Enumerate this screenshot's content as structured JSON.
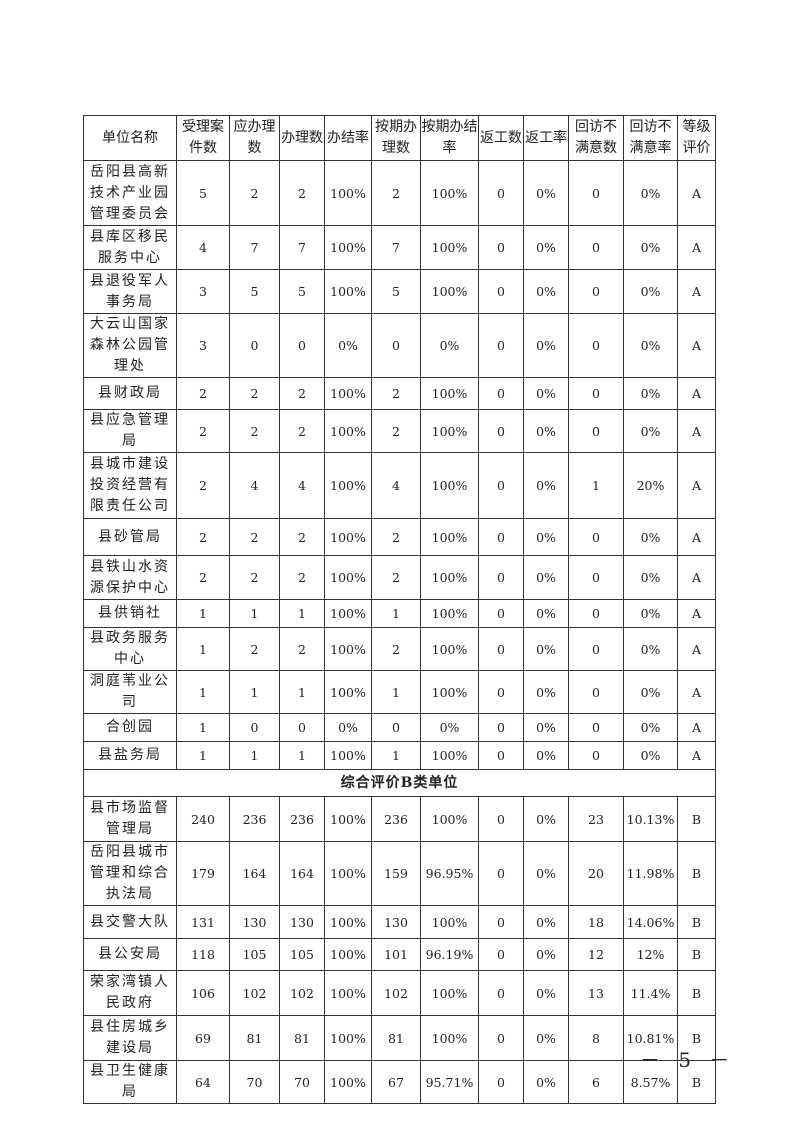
{
  "table": {
    "headers": [
      "单位名称",
      "受理案件数",
      "应办理数",
      "办理数",
      "办结率",
      "按期办理数",
      "按期办结率",
      "返工数",
      "返工率",
      "回访不满意数",
      "回访不满意率",
      "等级评价"
    ],
    "rows_a": [
      [
        "岳阳县高新技术产业园管理委员会",
        "5",
        "2",
        "2",
        "100%",
        "2",
        "100%",
        "0",
        "0%",
        "0",
        "0%",
        "A"
      ],
      [
        "县库区移民服务中心",
        "4",
        "7",
        "7",
        "100%",
        "7",
        "100%",
        "0",
        "0%",
        "0",
        "0%",
        "A"
      ],
      [
        "县退役军人事务局",
        "3",
        "5",
        "5",
        "100%",
        "5",
        "100%",
        "0",
        "0%",
        "0",
        "0%",
        "A"
      ],
      [
        "大云山国家森林公园管理处",
        "3",
        "0",
        "0",
        "0%",
        "0",
        "0%",
        "0",
        "0%",
        "0",
        "0%",
        "A"
      ],
      [
        "县财政局",
        "2",
        "2",
        "2",
        "100%",
        "2",
        "100%",
        "0",
        "0%",
        "0",
        "0%",
        "A"
      ],
      [
        "县应急管理局",
        "2",
        "2",
        "2",
        "100%",
        "2",
        "100%",
        "0",
        "0%",
        "0",
        "0%",
        "A"
      ],
      [
        "县城市建设投资经营有限责任公司",
        "2",
        "4",
        "4",
        "100%",
        "4",
        "100%",
        "0",
        "0%",
        "1",
        "20%",
        "A"
      ],
      [
        "县砂管局",
        "2",
        "2",
        "2",
        "100%",
        "2",
        "100%",
        "0",
        "0%",
        "0",
        "0%",
        "A"
      ],
      [
        "县铁山水资源保护中心",
        "2",
        "2",
        "2",
        "100%",
        "2",
        "100%",
        "0",
        "0%",
        "0",
        "0%",
        "A"
      ],
      [
        "县供销社",
        "1",
        "1",
        "1",
        "100%",
        "1",
        "100%",
        "0",
        "0%",
        "0",
        "0%",
        "A"
      ],
      [
        "县政务服务中心",
        "1",
        "2",
        "2",
        "100%",
        "2",
        "100%",
        "0",
        "0%",
        "0",
        "0%",
        "A"
      ],
      [
        "洞庭苇业公司",
        "1",
        "1",
        "1",
        "100%",
        "1",
        "100%",
        "0",
        "0%",
        "0",
        "0%",
        "A"
      ],
      [
        "合创园",
        "1",
        "0",
        "0",
        "0%",
        "0",
        "0%",
        "0",
        "0%",
        "0",
        "0%",
        "A"
      ],
      [
        "县盐务局",
        "1",
        "1",
        "1",
        "100%",
        "1",
        "100%",
        "0",
        "0%",
        "0",
        "0%",
        "A"
      ]
    ],
    "section_b_title": "综合评价B类单位",
    "rows_b": [
      [
        "县市场监督管理局",
        "240",
        "236",
        "236",
        "100%",
        "236",
        "100%",
        "0",
        "0%",
        "23",
        "10.13%",
        "B"
      ],
      [
        "岳阳县城市管理和综合执法局",
        "179",
        "164",
        "164",
        "100%",
        "159",
        "96.95%",
        "0",
        "0%",
        "20",
        "11.98%",
        "B"
      ],
      [
        "县交警大队",
        "131",
        "130",
        "130",
        "100%",
        "130",
        "100%",
        "0",
        "0%",
        "18",
        "14.06%",
        "B"
      ],
      [
        "县公安局",
        "118",
        "105",
        "105",
        "100%",
        "101",
        "96.19%",
        "0",
        "0%",
        "12",
        "12%",
        "B"
      ],
      [
        "荣家湾镇人民政府",
        "106",
        "102",
        "102",
        "100%",
        "102",
        "100%",
        "0",
        "0%",
        "13",
        "11.4%",
        "B"
      ],
      [
        "县住房城乡建设局",
        "69",
        "81",
        "81",
        "100%",
        "81",
        "100%",
        "0",
        "0%",
        "8",
        "10.81%",
        "B"
      ],
      [
        "县卫生健康局",
        "64",
        "70",
        "70",
        "100%",
        "67",
        "95.71%",
        "0",
        "0%",
        "6",
        "8.57%",
        "B"
      ]
    ]
  },
  "footer": {
    "page_number": "－ 5 －"
  }
}
